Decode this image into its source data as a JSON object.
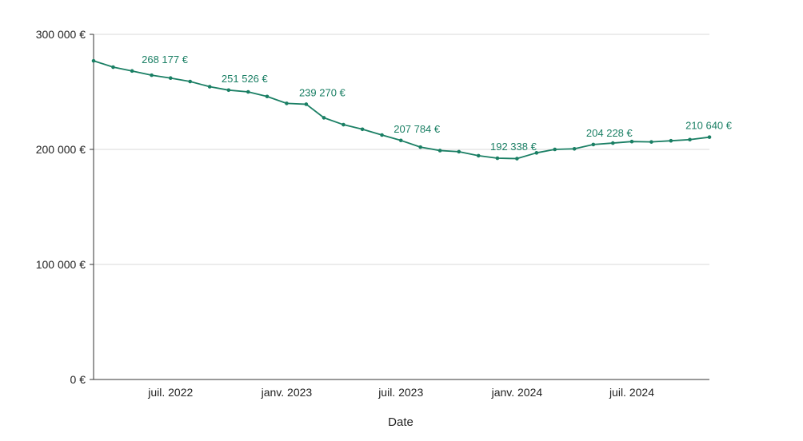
{
  "chart_data": {
    "type": "line",
    "xlabel": "Date",
    "ylabel": "",
    "ylim": [
      0,
      300000
    ],
    "grid": true,
    "color": "#1a7f64",
    "y_ticks": [
      {
        "value": 0,
        "label": "0 €"
      },
      {
        "value": 100000,
        "label": "100 000 €"
      },
      {
        "value": 200000,
        "label": "200 000 €"
      },
      {
        "value": 300000,
        "label": "300 000 €"
      }
    ],
    "x_ticks": [
      {
        "date": "2022-07-01",
        "label": "juil. 2022"
      },
      {
        "date": "2023-01-01",
        "label": "janv. 2023"
      },
      {
        "date": "2023-07-01",
        "label": "juil. 2023"
      },
      {
        "date": "2024-01-01",
        "label": "janv. 2024"
      },
      {
        "date": "2024-07-01",
        "label": "juil. 2024"
      }
    ],
    "series": [
      {
        "x": [
          "2022-03-01",
          "2022-04-01",
          "2022-05-01",
          "2022-06-01",
          "2022-07-01",
          "2022-08-01",
          "2022-09-01",
          "2022-10-01",
          "2022-11-01",
          "2022-12-01",
          "2023-01-01",
          "2023-02-01",
          "2023-03-01",
          "2023-04-01",
          "2023-05-01",
          "2023-06-01",
          "2023-07-01",
          "2023-08-01",
          "2023-09-01",
          "2023-10-01",
          "2023-11-01",
          "2023-12-01",
          "2024-01-01",
          "2024-02-01",
          "2024-03-01",
          "2024-04-01",
          "2024-05-01",
          "2024-06-01",
          "2024-07-01",
          "2024-08-01",
          "2024-09-01",
          "2024-10-01",
          "2024-11-01"
        ],
        "values": [
          277000,
          271500,
          268177,
          264500,
          262000,
          259000,
          254500,
          251526,
          250000,
          246000,
          240000,
          239270,
          227500,
          221500,
          217500,
          212500,
          207784,
          202000,
          199000,
          198000,
          194500,
          192338,
          192000,
          197000,
          200000,
          200500,
          204228,
          205500,
          206800,
          206500,
          207500,
          208500,
          210640
        ]
      }
    ],
    "data_labels": [
      {
        "index": 2,
        "label": "268 177 €"
      },
      {
        "index": 7,
        "label": "251 526 €"
      },
      {
        "index": 11,
        "label": "239 270 €"
      },
      {
        "index": 16,
        "label": "207 784 €"
      },
      {
        "index": 21,
        "label": "192 338 €"
      },
      {
        "index": 26,
        "label": "204 228 €"
      },
      {
        "index": 32,
        "label": "210 640 €"
      }
    ]
  }
}
